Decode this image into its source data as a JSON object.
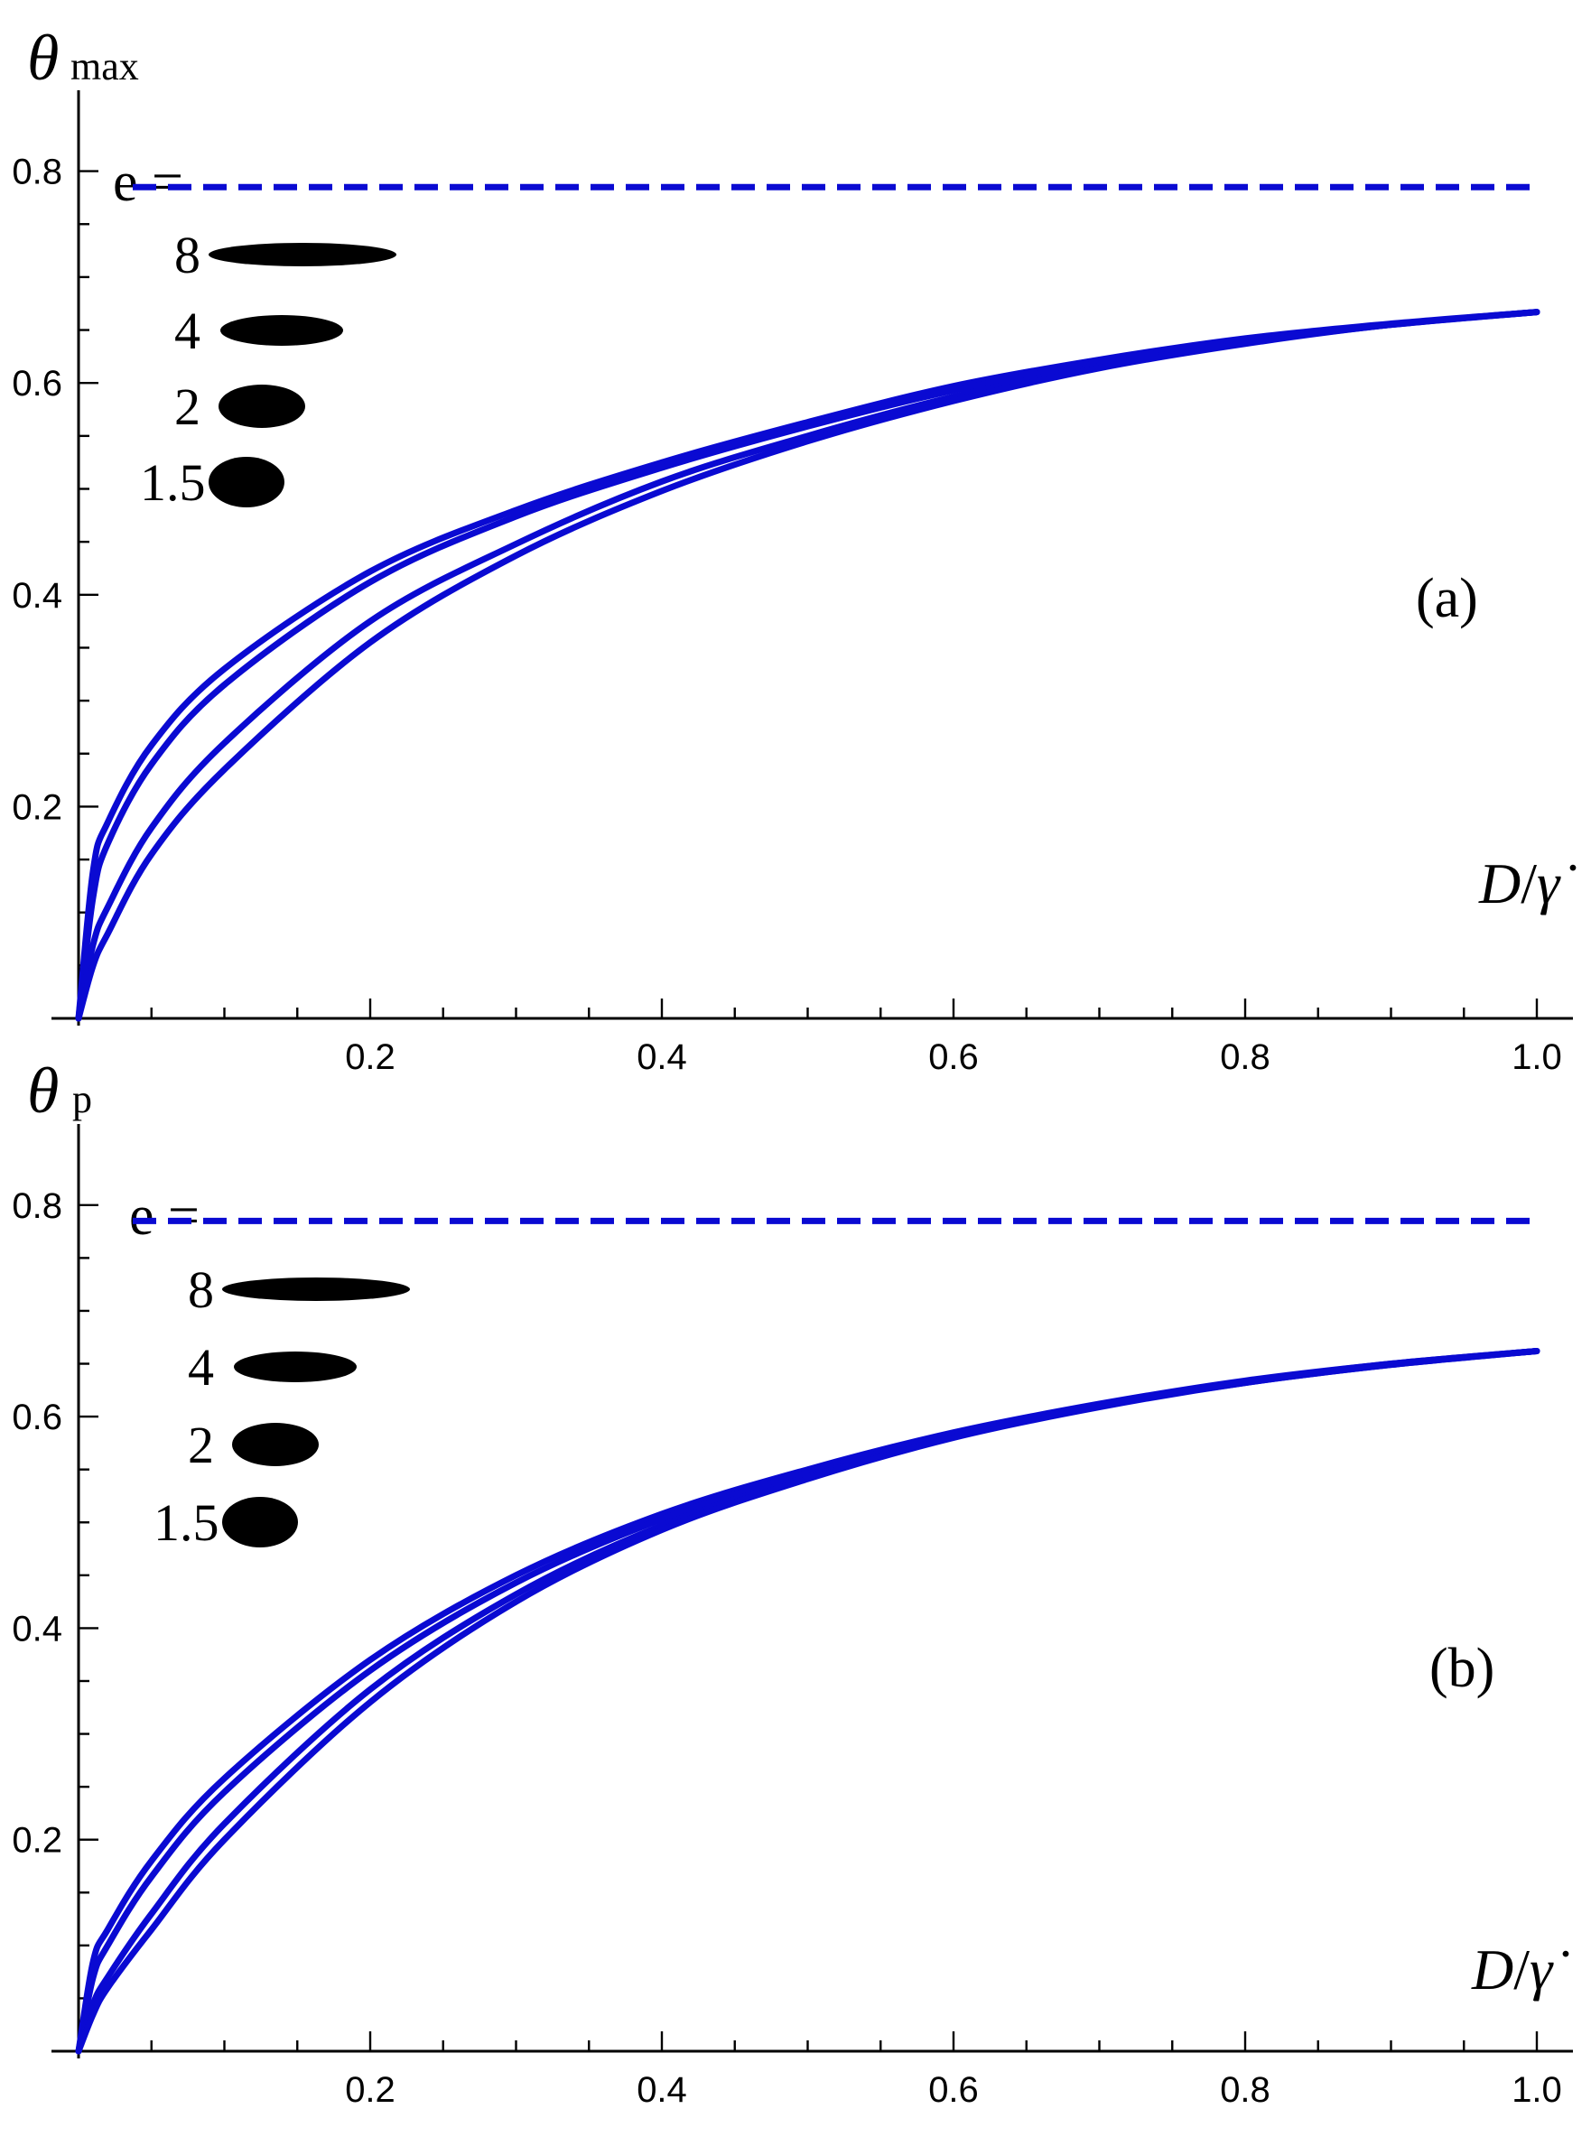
{
  "chart_data": [
    {
      "type": "line",
      "panel_label": "(a)",
      "ylabel_symbol": "θ",
      "ylabel_subscript": "max",
      "xlabel_main": "D",
      "xlabel_slash": "/",
      "xlabel_rate": "γ̇",
      "xlim": [
        0,
        1.0
      ],
      "ylim": [
        0,
        0.8
      ],
      "xticks": [
        "0.2",
        "0.4",
        "0.6",
        "0.8",
        "1.0"
      ],
      "yticks": [
        "0.2",
        "0.4",
        "0.6",
        "0.8"
      ],
      "asymptote": 0.785,
      "legend": {
        "title": "e =",
        "entries": [
          {
            "label": "8",
            "aspect": 8
          },
          {
            "label": "4",
            "aspect": 4
          },
          {
            "label": "2",
            "aspect": 2
          },
          {
            "label": "1.5",
            "aspect": 1.5
          }
        ]
      },
      "series": [
        {
          "x": [
            0,
            0.01,
            0.02,
            0.05,
            0.1,
            0.2,
            0.3,
            0.4,
            0.5,
            0.6,
            0.7,
            0.8,
            0.9,
            1.0
          ],
          "y": [
            0,
            0.14,
            0.185,
            0.258,
            0.33,
            0.422,
            0.48,
            0.525,
            0.563,
            0.597,
            0.622,
            0.642,
            0.656,
            0.667
          ]
        },
        {
          "x": [
            0,
            0.01,
            0.02,
            0.05,
            0.1,
            0.2,
            0.3,
            0.4,
            0.5,
            0.6,
            0.7,
            0.8,
            0.9,
            1.0
          ],
          "y": [
            0,
            0.115,
            0.165,
            0.24,
            0.315,
            0.412,
            0.474,
            0.52,
            0.559,
            0.593,
            0.619,
            0.64,
            0.655,
            0.667
          ]
        },
        {
          "x": [
            0,
            0.01,
            0.02,
            0.05,
            0.1,
            0.2,
            0.3,
            0.4,
            0.5,
            0.6,
            0.7,
            0.8,
            0.9,
            1.0
          ],
          "y": [
            0,
            0.07,
            0.105,
            0.18,
            0.26,
            0.375,
            0.448,
            0.507,
            0.55,
            0.587,
            0.616,
            0.638,
            0.655,
            0.667
          ]
        },
        {
          "x": [
            0,
            0.01,
            0.02,
            0.05,
            0.1,
            0.2,
            0.3,
            0.4,
            0.5,
            0.6,
            0.7,
            0.8,
            0.9,
            1.0
          ],
          "y": [
            0,
            0.05,
            0.08,
            0.155,
            0.235,
            0.355,
            0.437,
            0.498,
            0.545,
            0.583,
            0.614,
            0.637,
            0.655,
            0.667
          ]
        }
      ]
    },
    {
      "type": "line",
      "panel_label": "(b)",
      "ylabel_symbol": "θ",
      "ylabel_subscript": "p",
      "xlabel_main": "D",
      "xlabel_slash": "/",
      "xlabel_rate": "γ̇",
      "xlim": [
        0,
        1.0
      ],
      "ylim": [
        0,
        0.8
      ],
      "xticks": [
        "0.2",
        "0.4",
        "0.6",
        "0.8",
        "1.0"
      ],
      "yticks": [
        "0.2",
        "0.4",
        "0.6",
        "0.8"
      ],
      "asymptote": 0.785,
      "legend": {
        "title": "e =",
        "entries": [
          {
            "label": "8",
            "aspect": 8
          },
          {
            "label": "4",
            "aspect": 4
          },
          {
            "label": "2",
            "aspect": 2
          },
          {
            "label": "1.5",
            "aspect": 1.5
          }
        ]
      },
      "series": [
        {
          "x": [
            0,
            0.01,
            0.02,
            0.05,
            0.1,
            0.2,
            0.3,
            0.4,
            0.5,
            0.6,
            0.7,
            0.8,
            0.9,
            1.0
          ],
          "y": [
            0,
            0.085,
            0.115,
            0.18,
            0.258,
            0.37,
            0.45,
            0.508,
            0.55,
            0.585,
            0.612,
            0.634,
            0.65,
            0.662
          ]
        },
        {
          "x": [
            0,
            0.01,
            0.02,
            0.05,
            0.1,
            0.2,
            0.3,
            0.4,
            0.5,
            0.6,
            0.7,
            0.8,
            0.9,
            1.0
          ],
          "y": [
            0,
            0.07,
            0.1,
            0.165,
            0.245,
            0.36,
            0.443,
            0.503,
            0.547,
            0.583,
            0.611,
            0.633,
            0.65,
            0.662
          ]
        },
        {
          "x": [
            0,
            0.01,
            0.02,
            0.05,
            0.1,
            0.2,
            0.3,
            0.4,
            0.5,
            0.6,
            0.7,
            0.8,
            0.9,
            1.0
          ],
          "y": [
            0,
            0.045,
            0.07,
            0.13,
            0.215,
            0.342,
            0.432,
            0.497,
            0.543,
            0.581,
            0.61,
            0.632,
            0.649,
            0.662
          ]
        },
        {
          "x": [
            0,
            0.01,
            0.02,
            0.05,
            0.1,
            0.2,
            0.3,
            0.4,
            0.5,
            0.6,
            0.7,
            0.8,
            0.9,
            1.0
          ],
          "y": [
            0,
            0.035,
            0.06,
            0.115,
            0.2,
            0.33,
            0.425,
            0.493,
            0.541,
            0.58,
            0.609,
            0.632,
            0.649,
            0.662
          ]
        }
      ]
    }
  ],
  "colors": {
    "curve": "#0a0ad2",
    "axis": "#000000",
    "ellipse": "#000000"
  }
}
